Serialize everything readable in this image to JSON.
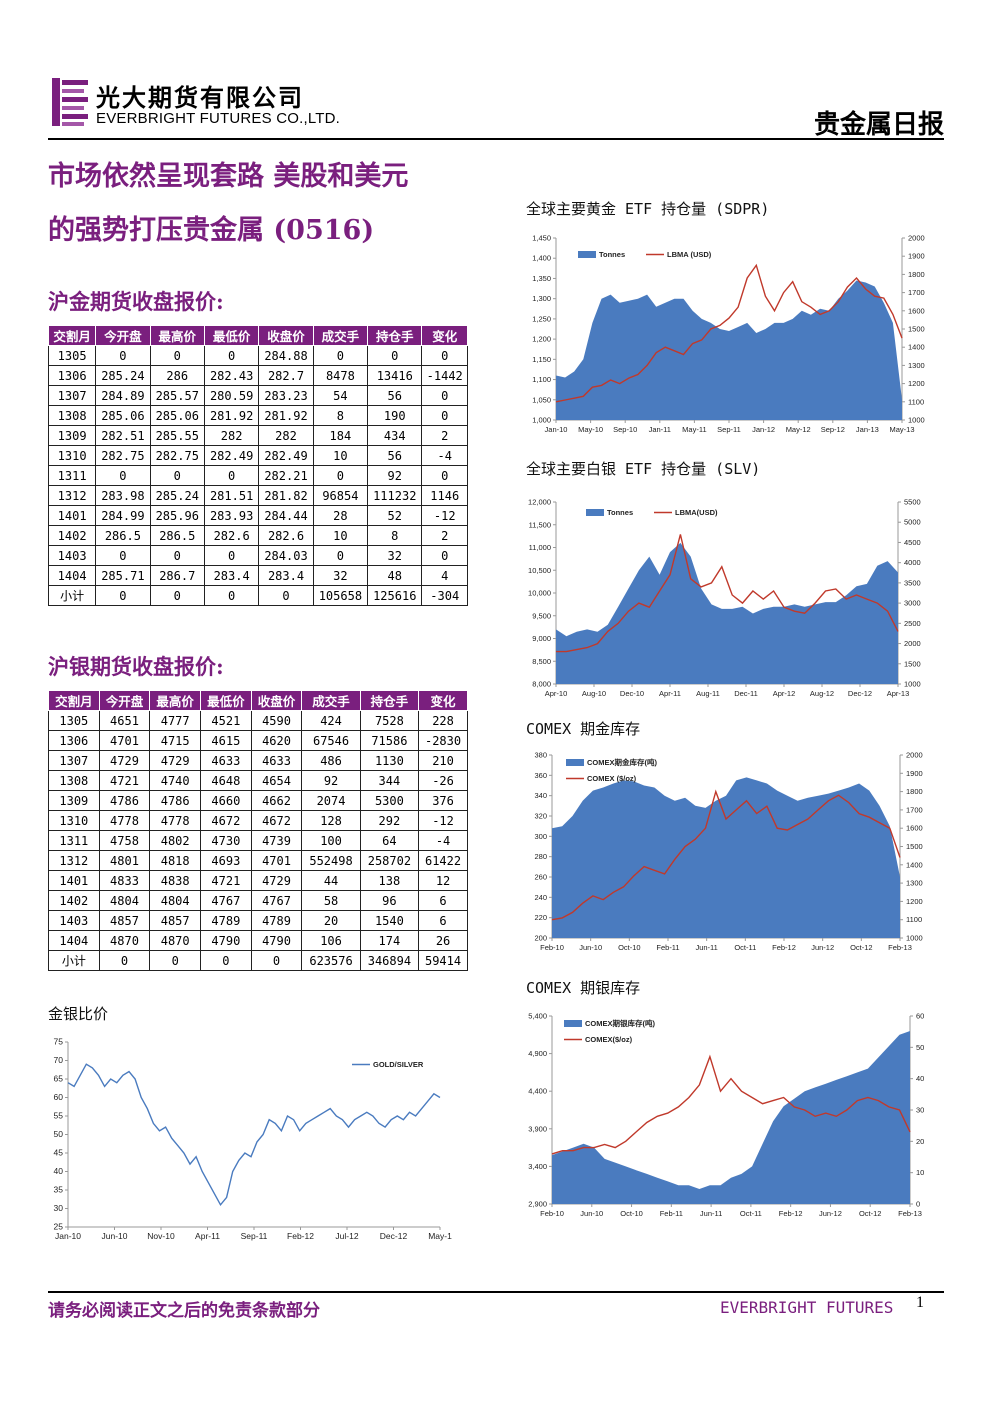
{
  "header": {
    "company_cn": "光大期货有限公司",
    "company_en": "EVERBRIGHT FUTURES CO.,LTD.",
    "report_type": "贵金属日报",
    "logo_icon": "everbright-e-logo",
    "brand_color": "#7a1f7e"
  },
  "headline": {
    "line1": "市场依然呈现套路 美股和美元",
    "line2": "的强势打压贵金属 (0516)"
  },
  "gold_table": {
    "title": "沪金期货收盘报价:",
    "headers": [
      "交割月",
      "今开盘",
      "最高价",
      "最低价",
      "收盘价",
      "成交手",
      "持仓手",
      "变化"
    ],
    "rows": [
      [
        "1305",
        "0",
        "0",
        "0",
        "284.88",
        "0",
        "0",
        "0"
      ],
      [
        "1306",
        "285.24",
        "286",
        "282.43",
        "282.7",
        "8478",
        "13416",
        "-1442"
      ],
      [
        "1307",
        "284.89",
        "285.57",
        "280.59",
        "283.23",
        "54",
        "56",
        "0"
      ],
      [
        "1308",
        "285.06",
        "285.06",
        "281.92",
        "281.92",
        "8",
        "190",
        "0"
      ],
      [
        "1309",
        "282.51",
        "285.55",
        "282",
        "282",
        "184",
        "434",
        "2"
      ],
      [
        "1310",
        "282.75",
        "282.75",
        "282.49",
        "282.49",
        "10",
        "56",
        "-4"
      ],
      [
        "1311",
        "0",
        "0",
        "0",
        "282.21",
        "0",
        "92",
        "0"
      ],
      [
        "1312",
        "283.98",
        "285.24",
        "281.51",
        "281.82",
        "96854",
        "111232",
        "1146"
      ],
      [
        "1401",
        "284.99",
        "285.96",
        "283.93",
        "284.44",
        "28",
        "52",
        "-12"
      ],
      [
        "1402",
        "286.5",
        "286.5",
        "282.6",
        "282.6",
        "10",
        "8",
        "2"
      ],
      [
        "1403",
        "0",
        "0",
        "0",
        "284.03",
        "0",
        "32",
        "0"
      ],
      [
        "1404",
        "285.71",
        "286.7",
        "283.4",
        "283.4",
        "32",
        "48",
        "4"
      ],
      [
        "小计",
        "0",
        "0",
        "0",
        "0",
        "105658",
        "125616",
        "-304"
      ]
    ]
  },
  "silver_table": {
    "title": "沪银期货收盘报价:",
    "headers": [
      "交割月",
      "今开盘",
      "最高价",
      "最低价",
      "收盘价",
      "成交手",
      "持仓手",
      "变化"
    ],
    "rows": [
      [
        "1305",
        "4651",
        "4777",
        "4521",
        "4590",
        "424",
        "7528",
        "228"
      ],
      [
        "1306",
        "4701",
        "4715",
        "4615",
        "4620",
        "67546",
        "71586",
        "-2830"
      ],
      [
        "1307",
        "4729",
        "4729",
        "4633",
        "4633",
        "486",
        "1130",
        "210"
      ],
      [
        "1308",
        "4721",
        "4740",
        "4648",
        "4654",
        "92",
        "344",
        "-26"
      ],
      [
        "1309",
        "4786",
        "4786",
        "4660",
        "4662",
        "2074",
        "5300",
        "376"
      ],
      [
        "1310",
        "4778",
        "4778",
        "4672",
        "4672",
        "128",
        "292",
        "-12"
      ],
      [
        "1311",
        "4758",
        "4802",
        "4730",
        "4739",
        "100",
        "64",
        "-4"
      ],
      [
        "1312",
        "4801",
        "4818",
        "4693",
        "4701",
        "552498",
        "258702",
        "61422"
      ],
      [
        "1401",
        "4833",
        "4838",
        "4721",
        "4729",
        "44",
        "138",
        "12"
      ],
      [
        "1402",
        "4804",
        "4804",
        "4767",
        "4767",
        "58",
        "96",
        "6"
      ],
      [
        "1403",
        "4857",
        "4857",
        "4789",
        "4789",
        "20",
        "1540",
        "6"
      ],
      [
        "1404",
        "4870",
        "4870",
        "4790",
        "4790",
        "106",
        "174",
        "26"
      ],
      [
        "小计",
        "0",
        "0",
        "0",
        "0",
        "623576",
        "346894",
        "59414"
      ]
    ]
  },
  "chart_data": [
    {
      "id": "ratio",
      "type": "line",
      "title": "金银比价",
      "x_ticks": [
        "Jan-10",
        "Jun-10",
        "Nov-10",
        "Apr-11",
        "Sep-11",
        "Feb-12",
        "Jul-12",
        "Dec-12",
        "May-1"
      ],
      "ylim": [
        25,
        75
      ],
      "y_ticks": [
        25,
        30,
        35,
        40,
        45,
        50,
        55,
        60,
        65,
        70,
        75
      ],
      "legend": "top-right",
      "series": [
        {
          "name": "GOLD/SILVER",
          "color": "#4a7bbf",
          "values": [
            64,
            63,
            66,
            69,
            68,
            66,
            63,
            65,
            64,
            66,
            67,
            65,
            60,
            57,
            53,
            51,
            52,
            49,
            47,
            45,
            42,
            44,
            40,
            37,
            34,
            31,
            33,
            40,
            43,
            45,
            44,
            48,
            50,
            54,
            53,
            51,
            55,
            54,
            51,
            53,
            54,
            55,
            56,
            57,
            55,
            54,
            52,
            54,
            55,
            56,
            55,
            53,
            52,
            54,
            55,
            54,
            56,
            55,
            57,
            59,
            61,
            60
          ]
        }
      ]
    },
    {
      "id": "sdpr",
      "type": "area",
      "title": "全球主要黄金 ETF 持仓量 (SDPR)",
      "x_ticks": [
        "Jan-10",
        "May-10",
        "Sep-10",
        "Jan-11",
        "May-11",
        "Sep-11",
        "Jan-12",
        "May-12",
        "Sep-12",
        "Jan-13",
        "May-13"
      ],
      "ylim": [
        1000,
        1450
      ],
      "y_ticks": [
        1000,
        1050,
        1100,
        1150,
        1200,
        1250,
        1300,
        1350,
        1400,
        1450
      ],
      "y2lim": [
        1000,
        2000
      ],
      "y2_ticks": [
        1000,
        1100,
        1200,
        1300,
        1400,
        1500,
        1600,
        1700,
        1800,
        1900,
        2000
      ],
      "legend": "top-left",
      "series": [
        {
          "name": "Tonnes",
          "color": "#4a7bbf",
          "axis": "left",
          "values": [
            1110,
            1105,
            1120,
            1150,
            1240,
            1300,
            1310,
            1290,
            1295,
            1300,
            1310,
            1280,
            1290,
            1300,
            1300,
            1270,
            1250,
            1240,
            1225,
            1220,
            1230,
            1240,
            1215,
            1225,
            1240,
            1240,
            1250,
            1270,
            1260,
            1275,
            1270,
            1300,
            1320,
            1345,
            1340,
            1330,
            1290,
            1240,
            1050
          ]
        },
        {
          "name": "LBMA (USD)",
          "color": "#c0392b",
          "axis": "right",
          "values": [
            1100,
            1110,
            1120,
            1130,
            1180,
            1190,
            1220,
            1200,
            1230,
            1250,
            1300,
            1370,
            1400,
            1380,
            1360,
            1420,
            1440,
            1500,
            1520,
            1560,
            1620,
            1780,
            1850,
            1680,
            1600,
            1700,
            1760,
            1650,
            1620,
            1580,
            1600,
            1650,
            1730,
            1780,
            1720,
            1680,
            1670,
            1580,
            1450
          ]
        }
      ]
    },
    {
      "id": "slv",
      "type": "area",
      "title": "全球主要白银 ETF 持仓量 (SLV)",
      "x_ticks": [
        "Apr-10",
        "Aug-10",
        "Dec-10",
        "Apr-11",
        "Aug-11",
        "Dec-11",
        "Apr-12",
        "Aug-12",
        "Dec-12",
        "Apr-13"
      ],
      "ylim": [
        8000,
        12000
      ],
      "y_ticks": [
        8000,
        8500,
        9000,
        9500,
        10000,
        10500,
        11000,
        11500,
        12000
      ],
      "y2lim": [
        1000,
        5500
      ],
      "y2_ticks": [
        1000,
        1500,
        2000,
        2500,
        3000,
        3500,
        4000,
        4500,
        5000,
        5500
      ],
      "legend": "top-left",
      "series": [
        {
          "name": "Tonnes",
          "color": "#4a7bbf",
          "axis": "left",
          "values": [
            9200,
            9050,
            9150,
            9200,
            9150,
            9300,
            9700,
            10100,
            10500,
            10800,
            10400,
            10900,
            11100,
            10800,
            10100,
            9750,
            9650,
            9650,
            9700,
            9550,
            9650,
            9700,
            9700,
            9750,
            9700,
            9750,
            9800,
            9800,
            9950,
            10150,
            10200,
            10600,
            10700,
            10450
          ]
        },
        {
          "name": "LBMA(USD)",
          "color": "#c0392b",
          "axis": "right",
          "values": [
            1800,
            1800,
            1850,
            1900,
            2000,
            2300,
            2500,
            2800,
            3000,
            2900,
            3300,
            3700,
            4700,
            3600,
            3400,
            3500,
            3900,
            3200,
            3000,
            3300,
            3100,
            3300,
            2900,
            2800,
            2750,
            3000,
            3300,
            3350,
            3100,
            3200,
            3100,
            3000,
            2800,
            2300
          ]
        }
      ]
    },
    {
      "id": "comex_gold",
      "type": "area",
      "title": "COMEX 期金库存",
      "x_ticks": [
        "Feb-10",
        "Jun-10",
        "Oct-10",
        "Feb-11",
        "Jun-11",
        "Oct-11",
        "Feb-12",
        "Jun-12",
        "Oct-12",
        "Feb-13"
      ],
      "ylim": [
        200,
        380
      ],
      "y_ticks": [
        200,
        220,
        240,
        260,
        280,
        300,
        320,
        340,
        360,
        380
      ],
      "y2lim": [
        1000,
        2000
      ],
      "y2_ticks": [
        1000,
        1100,
        1200,
        1300,
        1400,
        1500,
        1600,
        1700,
        1800,
        1900,
        2000
      ],
      "legend": "top-left",
      "series": [
        {
          "name": "COMEX期金库存(吨)",
          "color": "#4a7bbf",
          "axis": "left",
          "values": [
            308,
            310,
            320,
            335,
            345,
            348,
            352,
            355,
            354,
            350,
            348,
            340,
            335,
            338,
            330,
            328,
            335,
            340,
            355,
            358,
            355,
            352,
            345,
            340,
            335,
            338,
            340,
            342,
            345,
            348,
            352,
            345,
            330,
            310,
            260
          ]
        },
        {
          "name": "COMEX ($/oz)",
          "color": "#c0392b",
          "axis": "right",
          "values": [
            1100,
            1110,
            1140,
            1190,
            1230,
            1210,
            1250,
            1280,
            1340,
            1390,
            1370,
            1350,
            1430,
            1500,
            1540,
            1600,
            1800,
            1650,
            1700,
            1750,
            1680,
            1720,
            1600,
            1590,
            1620,
            1650,
            1700,
            1750,
            1780,
            1740,
            1680,
            1660,
            1630,
            1600,
            1440
          ]
        }
      ]
    },
    {
      "id": "comex_silver",
      "type": "area",
      "title": "COMEX 期银库存",
      "x_ticks": [
        "Feb-10",
        "Jun-10",
        "Oct-10",
        "Feb-11",
        "Jun-11",
        "Oct-11",
        "Feb-12",
        "Jun-12",
        "Oct-12",
        "Feb-13"
      ],
      "ylim": [
        2900,
        5400
      ],
      "y_ticks": [
        2900,
        3400,
        3900,
        4400,
        4900,
        5400
      ],
      "y2lim": [
        0,
        60
      ],
      "y2_ticks": [
        0,
        10,
        20,
        30,
        40,
        50,
        60
      ],
      "legend": "top-left",
      "series": [
        {
          "name": "COMEX期银库存(吨)",
          "color": "#4a7bbf",
          "axis": "left",
          "values": [
            3550,
            3600,
            3650,
            3700,
            3650,
            3500,
            3450,
            3400,
            3350,
            3300,
            3250,
            3200,
            3150,
            3150,
            3100,
            3150,
            3150,
            3250,
            3300,
            3400,
            3700,
            4000,
            4200,
            4300,
            4400,
            4450,
            4500,
            4550,
            4600,
            4650,
            4700,
            4850,
            5000,
            5150,
            5200
          ]
        },
        {
          "name": "COMEX($/oz)",
          "color": "#c0392b",
          "axis": "right",
          "values": [
            16,
            17,
            17,
            18,
            18,
            19,
            18,
            20,
            23,
            26,
            28,
            29,
            31,
            34,
            38,
            47,
            36,
            40,
            36,
            34,
            32,
            33,
            34,
            31,
            30,
            28,
            29,
            28,
            30,
            33,
            34,
            33,
            31,
            30,
            23
          ]
        }
      ]
    }
  ],
  "footer": {
    "disclaimer": "请务必阅读正文之后的免责条款部分",
    "brand": "EVERBRIGHT FUTURES",
    "page": "1"
  }
}
